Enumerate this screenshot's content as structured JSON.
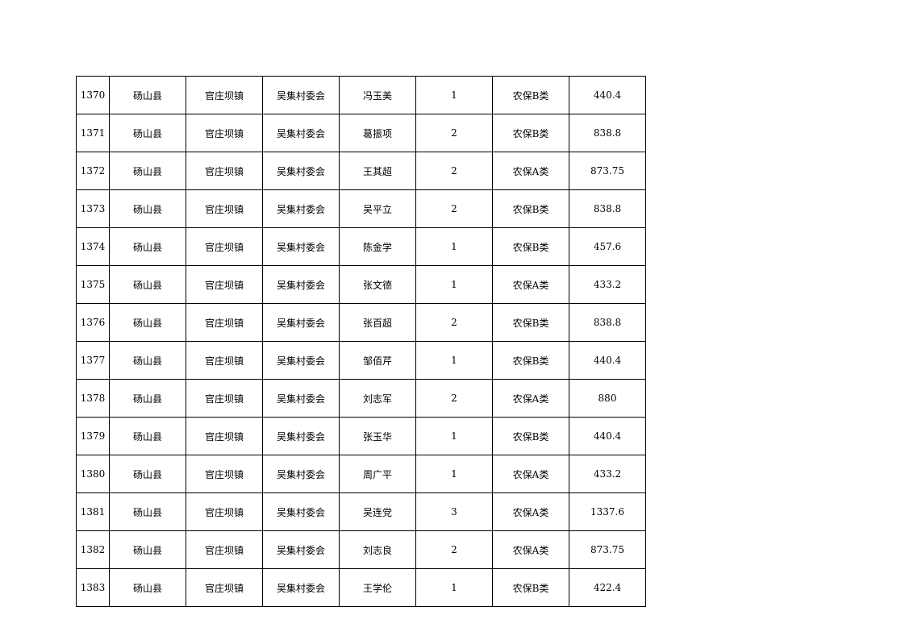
{
  "table": {
    "rows": [
      [
        "1370",
        "砀山县",
        "官庄坝镇",
        "吴集村委会",
        "冯玉美",
        "1",
        "农保B类",
        "440.4"
      ],
      [
        "1371",
        "砀山县",
        "官庄坝镇",
        "吴集村委会",
        "葛振项",
        "2",
        "农保B类",
        "838.8"
      ],
      [
        "1372",
        "砀山县",
        "官庄坝镇",
        "吴集村委会",
        "王其超",
        "2",
        "农保A类",
        "873.75"
      ],
      [
        "1373",
        "砀山县",
        "官庄坝镇",
        "吴集村委会",
        "吴平立",
        "2",
        "农保B类",
        "838.8"
      ],
      [
        "1374",
        "砀山县",
        "官庄坝镇",
        "吴集村委会",
        "陈金学",
        "1",
        "农保B类",
        "457.6"
      ],
      [
        "1375",
        "砀山县",
        "官庄坝镇",
        "吴集村委会",
        "张文德",
        "1",
        "农保A类",
        "433.2"
      ],
      [
        "1376",
        "砀山县",
        "官庄坝镇",
        "吴集村委会",
        "张百超",
        "2",
        "农保B类",
        "838.8"
      ],
      [
        "1377",
        "砀山县",
        "官庄坝镇",
        "吴集村委会",
        "邹佰芹",
        "1",
        "农保B类",
        "440.4"
      ],
      [
        "1378",
        "砀山县",
        "官庄坝镇",
        "吴集村委会",
        "刘志军",
        "2",
        "农保A类",
        "880"
      ],
      [
        "1379",
        "砀山县",
        "官庄坝镇",
        "吴集村委会",
        "张玉华",
        "1",
        "农保B类",
        "440.4"
      ],
      [
        "1380",
        "砀山县",
        "官庄坝镇",
        "吴集村委会",
        "周广平",
        "1",
        "农保A类",
        "433.2"
      ],
      [
        "1381",
        "砀山县",
        "官庄坝镇",
        "吴集村委会",
        "吴连党",
        "3",
        "农保A类",
        "1337.6"
      ],
      [
        "1382",
        "砀山县",
        "官庄坝镇",
        "吴集村委会",
        "刘志良",
        "2",
        "农保A类",
        "873.75"
      ],
      [
        "1383",
        "砀山县",
        "官庄坝镇",
        "吴集村委会",
        "王学伦",
        "1",
        "农保B类",
        "422.4"
      ]
    ]
  }
}
